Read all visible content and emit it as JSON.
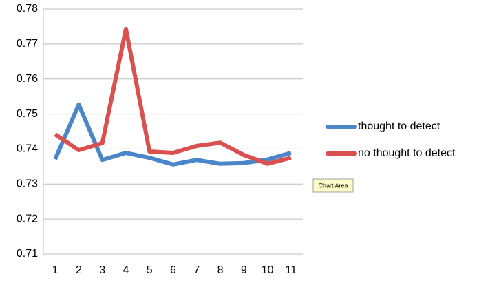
{
  "chart_data": {
    "type": "line",
    "categories": [
      "1",
      "2",
      "3",
      "4",
      "5",
      "6",
      "7",
      "8",
      "9",
      "10",
      "11"
    ],
    "series": [
      {
        "name": "thought to detect",
        "color": "#4a86c8",
        "values": [
          0.7371,
          0.7527,
          0.7369,
          0.7389,
          0.7375,
          0.7356,
          0.7369,
          0.7358,
          0.736,
          0.737,
          0.7389
        ]
      },
      {
        "name": "no thought to detect",
        "color": "#d9504f",
        "values": [
          0.7442,
          0.7397,
          0.7417,
          0.7743,
          0.7393,
          0.7389,
          0.7409,
          0.7418,
          0.7383,
          0.7358,
          0.7375
        ]
      }
    ],
    "ylim": [
      0.71,
      0.78
    ],
    "yticks": [
      0.71,
      0.72,
      0.73,
      0.74,
      0.75,
      0.76,
      0.77,
      0.78
    ],
    "grid": true,
    "legend": "right",
    "tooltip": "Chart Area"
  }
}
